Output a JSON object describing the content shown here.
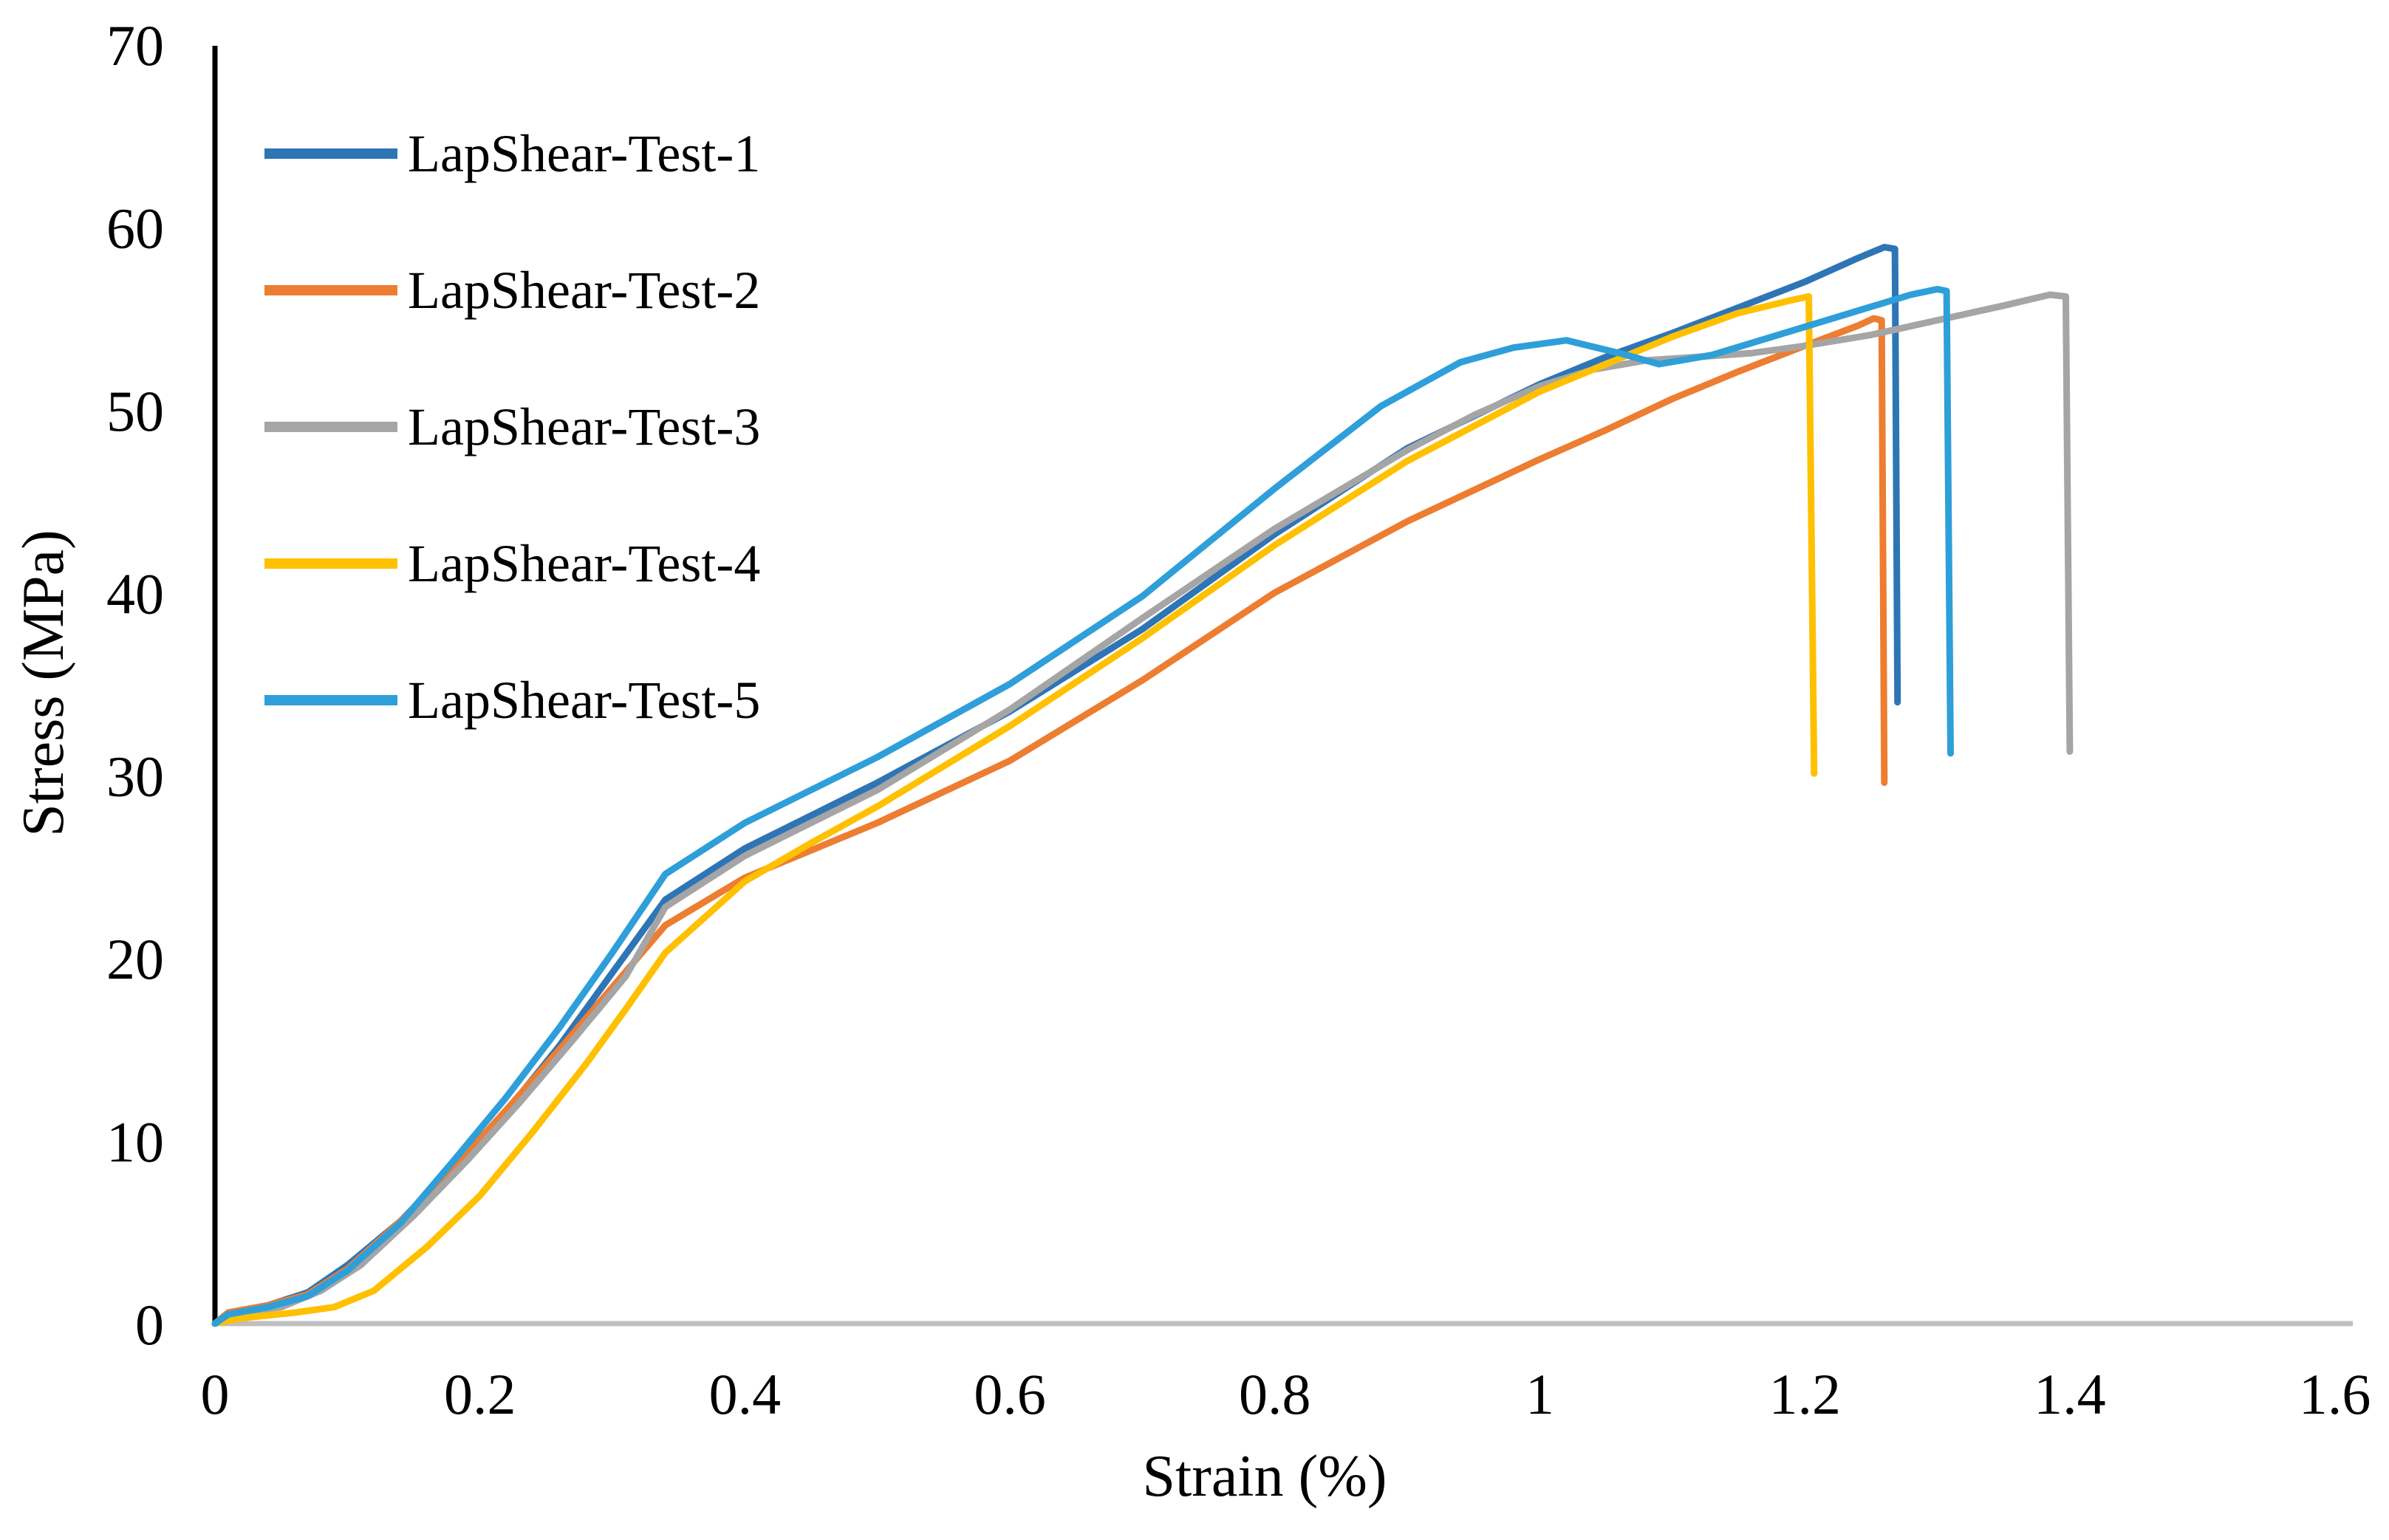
{
  "figure": {
    "background": "#FFFFFF"
  },
  "chart_data": {
    "type": "line",
    "title": "",
    "xlabel": "Strain (%)",
    "ylabel": "Stress (MPa)",
    "xlim": [
      0,
      1.6
    ],
    "ylim": [
      0,
      70
    ],
    "grid": false,
    "legend_position": "top-left-inside",
    "axis_colors": {
      "x_axis_line": "#BFBFBF",
      "y_axis_line": "#000000",
      "tick_text": "#000000"
    },
    "x_tick_values": [
      0,
      0.2,
      0.4,
      0.6,
      0.8,
      1,
      1.2,
      1.4,
      1.6
    ],
    "x_tick_labels": [
      "0",
      "0.2",
      "0.4",
      "0.6",
      "0.8",
      "1",
      "1.2",
      "1.4",
      "1.6"
    ],
    "y_tick_values": [
      0,
      10,
      20,
      30,
      40,
      50,
      60,
      70
    ],
    "y_tick_labels": [
      "0",
      "10",
      "20",
      "30",
      "40",
      "50",
      "60",
      "70"
    ],
    "series": [
      {
        "name": "LapShear-Test-1",
        "color": "#2E75B6",
        "points": [
          [
            0,
            0
          ],
          [
            0.01,
            0.6
          ],
          [
            0.04,
            1.0
          ],
          [
            0.07,
            1.7
          ],
          [
            0.1,
            3.2
          ],
          [
            0.14,
            5.6
          ],
          [
            0.18,
            8.6
          ],
          [
            0.22,
            11.6
          ],
          [
            0.26,
            15.2
          ],
          [
            0.3,
            19.2
          ],
          [
            0.34,
            23.2
          ],
          [
            0.4,
            26.0
          ],
          [
            0.45,
            27.8
          ],
          [
            0.5,
            29.6
          ],
          [
            0.6,
            33.5
          ],
          [
            0.7,
            38.0
          ],
          [
            0.8,
            43.2
          ],
          [
            0.9,
            47.9
          ],
          [
            1.0,
            51.4
          ],
          [
            1.05,
            52.9
          ],
          [
            1.1,
            54.2
          ],
          [
            1.15,
            55.6
          ],
          [
            1.2,
            57.0
          ],
          [
            1.24,
            58.3
          ],
          [
            1.26,
            58.9
          ],
          [
            1.268,
            58.8
          ],
          [
            1.27,
            34.0
          ]
        ]
      },
      {
        "name": "LapShear-Test-2",
        "color": "#ED7D31",
        "points": [
          [
            0,
            0
          ],
          [
            0.01,
            0.6
          ],
          [
            0.04,
            1.0
          ],
          [
            0.07,
            1.6
          ],
          [
            0.1,
            3.0
          ],
          [
            0.14,
            5.6
          ],
          [
            0.18,
            8.5
          ],
          [
            0.22,
            11.7
          ],
          [
            0.26,
            15.0
          ],
          [
            0.3,
            18.4
          ],
          [
            0.34,
            21.8
          ],
          [
            0.4,
            24.4
          ],
          [
            0.45,
            25.9
          ],
          [
            0.5,
            27.4
          ],
          [
            0.6,
            30.8
          ],
          [
            0.7,
            35.2
          ],
          [
            0.8,
            40.0
          ],
          [
            0.9,
            43.9
          ],
          [
            1.0,
            47.3
          ],
          [
            1.05,
            48.9
          ],
          [
            1.1,
            50.6
          ],
          [
            1.15,
            52.1
          ],
          [
            1.2,
            53.5
          ],
          [
            1.24,
            54.6
          ],
          [
            1.252,
            55.0
          ],
          [
            1.258,
            54.9
          ],
          [
            1.26,
            29.6
          ]
        ]
      },
      {
        "name": "LapShear-Test-3",
        "color": "#A5A5A5",
        "points": [
          [
            0,
            0
          ],
          [
            0.01,
            0.5
          ],
          [
            0.05,
            0.9
          ],
          [
            0.08,
            1.8
          ],
          [
            0.11,
            3.2
          ],
          [
            0.15,
            5.9
          ],
          [
            0.19,
            8.9
          ],
          [
            0.23,
            12.1
          ],
          [
            0.27,
            15.5
          ],
          [
            0.31,
            19.0
          ],
          [
            0.34,
            22.8
          ],
          [
            0.4,
            25.6
          ],
          [
            0.45,
            27.4
          ],
          [
            0.5,
            29.2
          ],
          [
            0.6,
            33.6
          ],
          [
            0.7,
            38.6
          ],
          [
            0.8,
            43.5
          ],
          [
            0.9,
            47.8
          ],
          [
            0.95,
            49.7
          ],
          [
            1.0,
            51.3
          ],
          [
            1.04,
            52.2
          ],
          [
            1.08,
            52.7
          ],
          [
            1.12,
            52.9
          ],
          [
            1.16,
            53.1
          ],
          [
            1.2,
            53.5
          ],
          [
            1.25,
            54.1
          ],
          [
            1.3,
            54.9
          ],
          [
            1.35,
            55.7
          ],
          [
            1.385,
            56.3
          ],
          [
            1.397,
            56.2
          ],
          [
            1.4,
            31.3
          ]
        ]
      },
      {
        "name": "LapShear-Test-4",
        "color": "#FFC000",
        "points": [
          [
            0,
            0
          ],
          [
            0.02,
            0.3
          ],
          [
            0.06,
            0.6
          ],
          [
            0.09,
            0.9
          ],
          [
            0.12,
            1.8
          ],
          [
            0.16,
            4.2
          ],
          [
            0.2,
            7.0
          ],
          [
            0.24,
            10.5
          ],
          [
            0.28,
            14.2
          ],
          [
            0.31,
            17.2
          ],
          [
            0.34,
            20.3
          ],
          [
            0.4,
            24.2
          ],
          [
            0.45,
            26.3
          ],
          [
            0.5,
            28.3
          ],
          [
            0.6,
            32.7
          ],
          [
            0.7,
            37.5
          ],
          [
            0.8,
            42.6
          ],
          [
            0.9,
            47.2
          ],
          [
            1.0,
            51.0
          ],
          [
            1.05,
            52.5
          ],
          [
            1.1,
            54.0
          ],
          [
            1.15,
            55.3
          ],
          [
            1.19,
            56.0
          ],
          [
            1.203,
            56.2
          ],
          [
            1.207,
            30.1
          ]
        ]
      },
      {
        "name": "LapShear-Test-5",
        "color": "#2E9FD9",
        "points": [
          [
            0,
            0
          ],
          [
            0.01,
            0.5
          ],
          [
            0.04,
            0.9
          ],
          [
            0.07,
            1.5
          ],
          [
            0.1,
            2.9
          ],
          [
            0.14,
            5.5
          ],
          [
            0.18,
            8.9
          ],
          [
            0.22,
            12.4
          ],
          [
            0.26,
            16.2
          ],
          [
            0.3,
            20.3
          ],
          [
            0.34,
            24.6
          ],
          [
            0.4,
            27.4
          ],
          [
            0.45,
            29.2
          ],
          [
            0.5,
            31.0
          ],
          [
            0.6,
            35.0
          ],
          [
            0.7,
            39.8
          ],
          [
            0.8,
            45.7
          ],
          [
            0.88,
            50.2
          ],
          [
            0.94,
            52.6
          ],
          [
            0.98,
            53.4
          ],
          [
            1.02,
            53.8
          ],
          [
            1.06,
            53.1
          ],
          [
            1.09,
            52.5
          ],
          [
            1.13,
            53.0
          ],
          [
            1.18,
            54.1
          ],
          [
            1.23,
            55.2
          ],
          [
            1.28,
            56.3
          ],
          [
            1.3,
            56.6
          ],
          [
            1.307,
            56.5
          ],
          [
            1.31,
            31.2
          ]
        ]
      }
    ]
  }
}
